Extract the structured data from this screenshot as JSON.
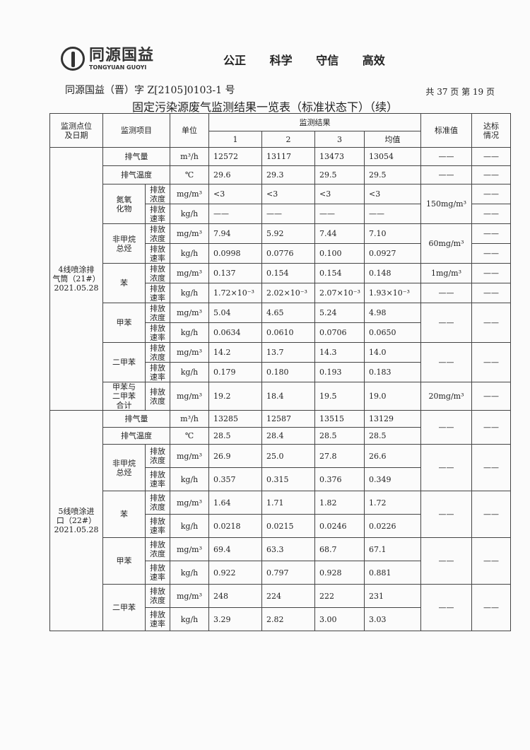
{
  "header": {
    "logo_cn": "同源国益",
    "logo_en": "TONGYUAN GUOYI",
    "slogan": [
      "公正",
      "科学",
      "守信",
      "高效"
    ],
    "doc_number": "同源国益（晋）字 Z[2105]0103-1 号",
    "page_info": "共 37 页   第 19 页",
    "title": "固定污染源废气监测结果一览表（标准状态下）（续）"
  },
  "table": {
    "headers": {
      "location": "监测点位\n及日期",
      "item": "监测项目",
      "unit": "单位",
      "results": "监测结果",
      "cols": [
        "1",
        "2",
        "3",
        "均值"
      ],
      "standard": "标准值",
      "compliance": "达标\n情况"
    },
    "sections": [
      {
        "location": "4线喷涂排\n气筒（21#）\n2021.05.28",
        "groups": [
          {
            "item": "排气量",
            "rows": [
              {
                "sub": "",
                "unit": "m³/h",
                "values": [
                  "12572",
                  "13117",
                  "13473",
                  "13054"
                ]
              }
            ],
            "std": [
              "——"
            ],
            "ok": [
              "——"
            ]
          },
          {
            "item": "排气温度",
            "rows": [
              {
                "sub": "",
                "unit": "℃",
                "values": [
                  "29.6",
                  "29.3",
                  "29.5",
                  "29.5"
                ]
              }
            ],
            "std": [
              "——"
            ],
            "ok": [
              "——"
            ]
          },
          {
            "item": "氮氧\n化物",
            "rows": [
              {
                "sub": "排放\n浓度",
                "unit": "mg/m³",
                "values": [
                  "<3",
                  "<3",
                  "<3",
                  "<3"
                ]
              },
              {
                "sub": "排放\n速率",
                "unit": "kg/h",
                "values": [
                  "——",
                  "——",
                  "——",
                  "——"
                ]
              }
            ],
            "std": [
              "150mg/m³"
            ],
            "ok": [
              "——",
              "——"
            ]
          },
          {
            "item": "非甲烷\n总烃",
            "rows": [
              {
                "sub": "排放\n浓度",
                "unit": "mg/m³",
                "values": [
                  "7.94",
                  "5.92",
                  "7.44",
                  "7.10"
                ]
              },
              {
                "sub": "排放\n速率",
                "unit": "kg/h",
                "values": [
                  "0.0998",
                  "0.0776",
                  "0.100",
                  "0.0927"
                ]
              }
            ],
            "std": [
              "60mg/m³"
            ],
            "ok": [
              "——",
              "——"
            ]
          },
          {
            "item": "苯",
            "rows": [
              {
                "sub": "排放\n浓度",
                "unit": "mg/m³",
                "values": [
                  "0.137",
                  "0.154",
                  "0.154",
                  "0.148"
                ]
              },
              {
                "sub": "排放\n速率",
                "unit": "kg/h",
                "values": [
                  "1.72×10⁻³",
                  "2.02×10⁻³",
                  "2.07×10⁻³",
                  "1.93×10⁻³"
                ]
              }
            ],
            "std": [
              "1mg/m³",
              "——"
            ],
            "ok": [
              "——",
              "——"
            ]
          },
          {
            "item": "甲苯",
            "rows": [
              {
                "sub": "排放\n浓度",
                "unit": "mg/m³",
                "values": [
                  "5.04",
                  "4.65",
                  "5.24",
                  "4.98"
                ]
              },
              {
                "sub": "排放\n速率",
                "unit": "kg/h",
                "values": [
                  "0.0634",
                  "0.0610",
                  "0.0706",
                  "0.0650"
                ]
              }
            ],
            "std": [
              "——"
            ],
            "ok": [
              "——"
            ]
          },
          {
            "item": "二甲苯",
            "rows": [
              {
                "sub": "排放\n浓度",
                "unit": "mg/m³",
                "values": [
                  "14.2",
                  "13.7",
                  "14.3",
                  "14.0"
                ]
              },
              {
                "sub": "排放\n速率",
                "unit": "kg/h",
                "values": [
                  "0.179",
                  "0.180",
                  "0.193",
                  "0.183"
                ]
              }
            ],
            "std": [
              "——"
            ],
            "ok": [
              "——"
            ]
          },
          {
            "item": "甲苯与\n二甲苯\n合计",
            "rows": [
              {
                "sub": "排放\n浓度",
                "unit": "mg/m³",
                "values": [
                  "19.2",
                  "18.4",
                  "19.5",
                  "19.0"
                ]
              }
            ],
            "std": [
              "20mg/m³"
            ],
            "ok": [
              "——"
            ]
          }
        ]
      },
      {
        "location": "5线喷涂进\n口（22#）\n2021.05.28",
        "groups": [
          {
            "item": "排气量",
            "rows": [
              {
                "sub": "",
                "unit": "m³/h",
                "values": [
                  "13285",
                  "12587",
                  "13515",
                  "13129"
                ]
              }
            ],
            "std": null,
            "ok": null
          },
          {
            "item": "排气温度",
            "rows": [
              {
                "sub": "",
                "unit": "℃",
                "values": [
                  "28.5",
                  "28.4",
                  "28.5",
                  "28.5"
                ]
              }
            ],
            "std": [
              "——"
            ],
            "ok": [
              "——"
            ],
            "span_prev": true
          },
          {
            "item": "非甲烷\n总烃",
            "rows": [
              {
                "sub": "排放\n浓度",
                "unit": "mg/m³",
                "values": [
                  "26.9",
                  "25.0",
                  "27.8",
                  "26.6"
                ]
              },
              {
                "sub": "排放\n速率",
                "unit": "kg/h",
                "values": [
                  "0.357",
                  "0.315",
                  "0.376",
                  "0.349"
                ]
              }
            ],
            "std": [
              "——"
            ],
            "ok": [
              "——"
            ]
          },
          {
            "item": "苯",
            "rows": [
              {
                "sub": "排放\n浓度",
                "unit": "mg/m³",
                "values": [
                  "1.64",
                  "1.71",
                  "1.82",
                  "1.72"
                ]
              },
              {
                "sub": "排放\n速率",
                "unit": "kg/h",
                "values": [
                  "0.0218",
                  "0.0215",
                  "0.0246",
                  "0.0226"
                ]
              }
            ],
            "std": [
              "——"
            ],
            "ok": [
              "——"
            ]
          },
          {
            "item": "甲苯",
            "rows": [
              {
                "sub": "排放\n浓度",
                "unit": "mg/m³",
                "values": [
                  "69.4",
                  "63.3",
                  "68.7",
                  "67.1"
                ]
              },
              {
                "sub": "排放\n速率",
                "unit": "kg/h",
                "values": [
                  "0.922",
                  "0.797",
                  "0.928",
                  "0.881"
                ]
              }
            ],
            "std": [
              "——"
            ],
            "ok": [
              "——"
            ]
          },
          {
            "item": "二甲苯",
            "rows": [
              {
                "sub": "排放\n浓度",
                "unit": "mg/m³",
                "values": [
                  "248",
                  "224",
                  "222",
                  "231"
                ]
              },
              {
                "sub": "排放\n速率",
                "unit": "kg/h",
                "values": [
                  "3.29",
                  "2.82",
                  "3.00",
                  "3.03"
                ]
              }
            ],
            "std": [
              "——"
            ],
            "ok": [
              "——"
            ]
          }
        ]
      }
    ]
  }
}
